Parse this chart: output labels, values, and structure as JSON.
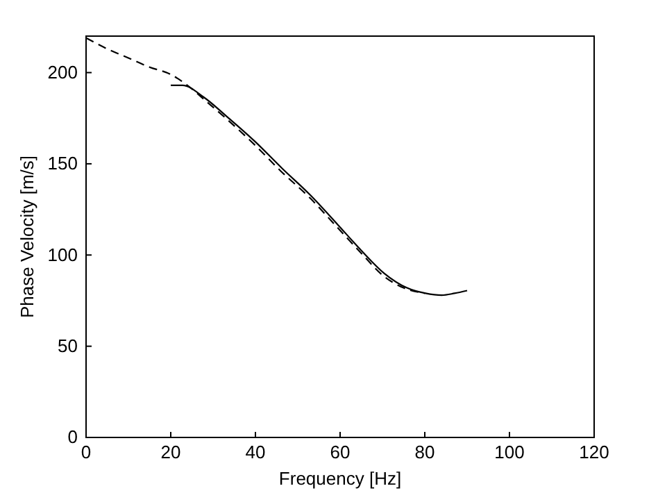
{
  "chart_data": {
    "type": "line",
    "xlabel": "Frequency [Hz]",
    "ylabel": "Phase Velocity [m/s]",
    "xlim": [
      0,
      120
    ],
    "ylim": [
      0,
      220
    ],
    "xticks": [
      0,
      20,
      40,
      60,
      80,
      100,
      120
    ],
    "yticks": [
      0,
      50,
      100,
      150,
      200
    ],
    "grid": false,
    "series": [
      {
        "color": "#000000",
        "line_style": "dashed",
        "x": [
          0,
          5,
          10,
          15,
          20,
          24.5,
          28,
          33,
          40,
          46,
          53,
          59,
          65,
          70,
          75,
          80
        ],
        "values": [
          219,
          213,
          208,
          203,
          199,
          192,
          185,
          175,
          160,
          146,
          131,
          116,
          101,
          89,
          82,
          79
        ]
      },
      {
        "color": "#000000",
        "line_style": "solid",
        "x": [
          20,
          22.8,
          27.8,
          33.2,
          40,
          46.3,
          52.9,
          59.5,
          65,
          70.4,
          75.8,
          80.2,
          84,
          87,
          90
        ],
        "values": [
          193,
          193,
          186.5,
          176,
          162,
          147.5,
          133,
          116.5,
          102.5,
          90,
          82,
          79,
          78,
          79,
          80.5
        ]
      }
    ]
  }
}
